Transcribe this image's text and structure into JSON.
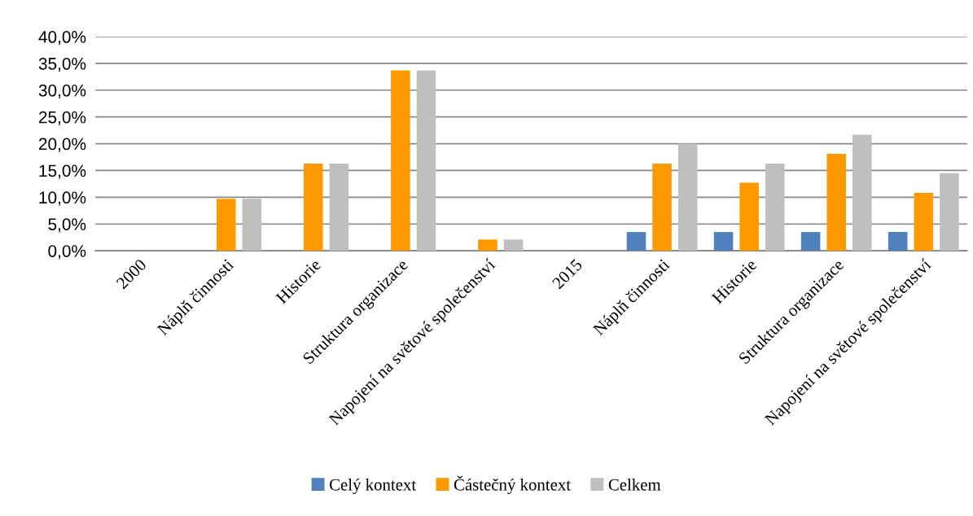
{
  "chart_data": {
    "type": "bar",
    "categories": [
      "2000",
      "Náplň činnosti",
      "Historie",
      "Struktura organizace",
      "Napojení na světové společenství",
      "2015",
      "Náplň činnosti",
      "Historie",
      "Struktura organizace",
      "Napojení na světové společenství"
    ],
    "series": [
      {
        "name": "Celý kontext",
        "color": "#4f81bd",
        "values": [
          null,
          0,
          0,
          0,
          0,
          null,
          3.5,
          3.5,
          3.5,
          3.5
        ]
      },
      {
        "name": "Částečný kontext",
        "color": "#ff9900",
        "values": [
          null,
          9.7,
          16.3,
          33.7,
          2.1,
          null,
          16.3,
          12.7,
          18.1,
          10.8
        ]
      },
      {
        "name": "Celkem",
        "color": "#bfbfbf",
        "values": [
          null,
          9.7,
          16.3,
          33.7,
          2.1,
          null,
          20.0,
          16.3,
          21.7,
          14.5
        ]
      }
    ],
    "ylim": [
      0,
      40
    ],
    "yticks": [
      {
        "value": 0,
        "label": "0,0%"
      },
      {
        "value": 5,
        "label": "5,0%"
      },
      {
        "value": 10,
        "label": "10,0%"
      },
      {
        "value": 15,
        "label": "15,0%"
      },
      {
        "value": 20,
        "label": "20,0%"
      },
      {
        "value": 25,
        "label": "25,0%"
      },
      {
        "value": 30,
        "label": "30,0%"
      },
      {
        "value": 35,
        "label": "35,0%"
      },
      {
        "value": 40,
        "label": "40,0%"
      }
    ],
    "grid": "y",
    "legend": "bottom"
  }
}
